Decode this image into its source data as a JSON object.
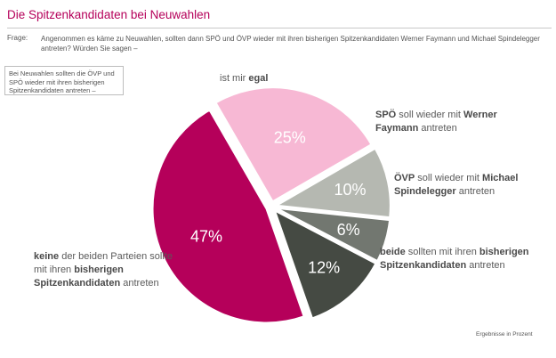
{
  "header": {
    "title": "Die Spitzenkandidaten bei Neuwahlen",
    "frage_label": "Frage:",
    "frage_text": "Angenommen es käme zu Neuwahlen, sollten dann SPÖ und ÖVP wieder mit ihren bisherigen Spitzenkandidaten Werner Faymann und Michael Spindelegger antreten? Würden Sie sagen –"
  },
  "note": "Bei Neuwahlen sollten die ÖVP und SPÖ wieder mit ihren bisherigen Spitzenkandidaten antreten –",
  "footnote": "Ergebnisse in Prozent",
  "labels": {
    "egal": {
      "pre": "ist mir ",
      "bold": "egal"
    },
    "spoe": {
      "bold1": "SPÖ",
      "mid": " soll wieder mit ",
      "bold2": "Werner Faymann",
      "post": " antreten"
    },
    "oevp": {
      "bold1": "ÖVP",
      "mid": " soll wieder mit ",
      "bold2": "Michael Spindelegger",
      "post": " antreten"
    },
    "beide": {
      "bold1": "beide",
      "mid": " sollten mit ihren ",
      "bold2": "bisherigen Spitzenkandidaten",
      "post": " antreten"
    },
    "keine": {
      "bold1": "keine",
      "mid1": " der beiden Parteien sollte mit ihren ",
      "bold2": "bisherigen Spitzenkandidaten",
      "post": " antreten"
    }
  },
  "chart_data": {
    "type": "pie",
    "slices": [
      {
        "key": "egal",
        "value": 25,
        "label": "25%",
        "color": "#f7b8d4"
      },
      {
        "key": "spoe",
        "value": 10,
        "label": "10%",
        "color": "#b5b8b1"
      },
      {
        "key": "oevp",
        "value": 6,
        "label": "6%",
        "color": "#727770"
      },
      {
        "key": "beide",
        "value": 12,
        "label": "12%",
        "color": "#454a43"
      },
      {
        "key": "keine",
        "value": 47,
        "label": "47%",
        "color": "#b5005a"
      }
    ]
  }
}
